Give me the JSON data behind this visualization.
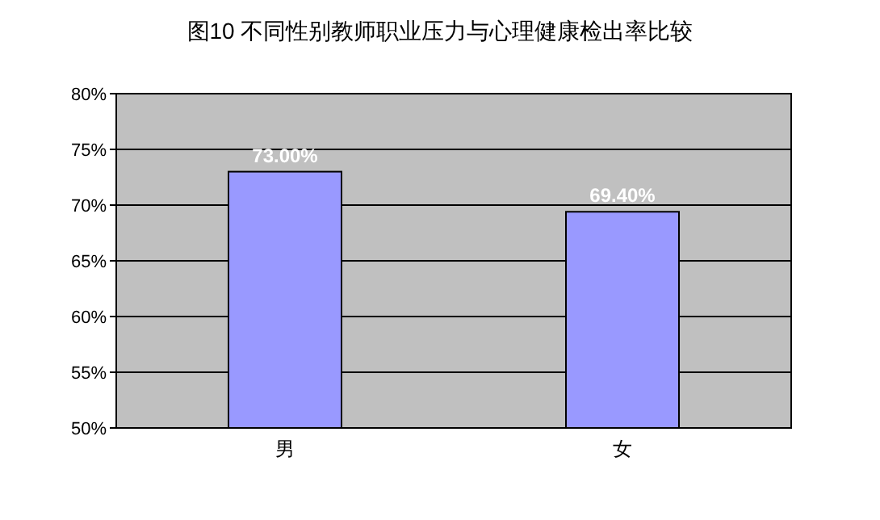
{
  "chart_data": {
    "type": "bar",
    "title": "图10 不同性别教师职业压力与心理健康检出率比较",
    "categories": [
      "男",
      "女"
    ],
    "values": [
      73.0,
      69.4
    ],
    "value_labels": [
      "73.00%",
      "69.40%"
    ],
    "color": "#9999ff",
    "ylim": [
      50,
      80
    ],
    "yticks": [
      {
        "value": 50,
        "label": "50%"
      },
      {
        "value": 55,
        "label": "55%"
      },
      {
        "value": 60,
        "label": "60%"
      },
      {
        "value": 65,
        "label": "65%"
      },
      {
        "value": 70,
        "label": "70%"
      },
      {
        "value": 75,
        "label": "75%"
      },
      {
        "value": 80,
        "label": "80%"
      }
    ],
    "grid": "y"
  }
}
